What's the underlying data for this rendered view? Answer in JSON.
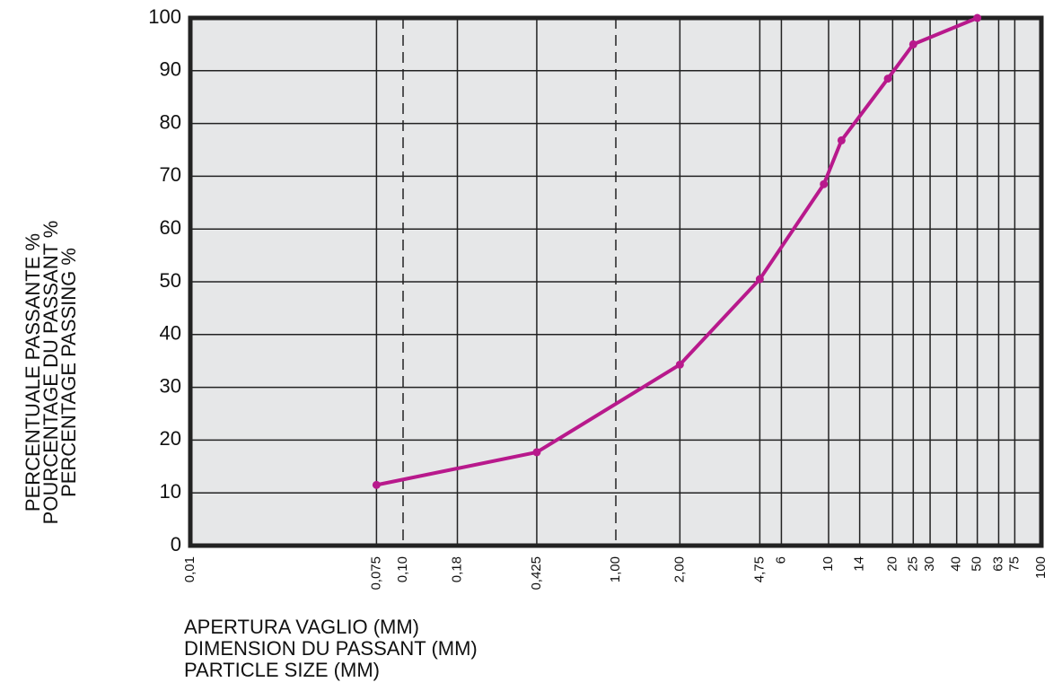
{
  "chart_data": {
    "type": "line",
    "xlabel": [
      "APERTURA VAGLIO (MM)",
      "DIMENSION DU PASSANT (MM)",
      "PARTICLE SIZE (MM)"
    ],
    "ylabel": [
      "PERCENTUALE PASSANTE %",
      "POURCENTAGE DU PASSANT %",
      "PERCENTAGE PASSING %"
    ],
    "xscale": "log",
    "xlim": [
      0.01,
      100
    ],
    "ylim": [
      0,
      100
    ],
    "xticks": [
      {
        "value": 0.01,
        "label": "0,01"
      },
      {
        "value": 0.075,
        "label": "0,075"
      },
      {
        "value": 0.1,
        "label": "0,10",
        "dashed": true
      },
      {
        "value": 0.18,
        "label": "0,18"
      },
      {
        "value": 0.425,
        "label": "0,425"
      },
      {
        "value": 1,
        "label": "1,00",
        "dashed": true
      },
      {
        "value": 2,
        "label": "2,00"
      },
      {
        "value": 4.75,
        "label": "4,75"
      },
      6,
      10,
      14,
      20,
      25,
      30,
      40,
      50,
      63,
      75,
      100
    ],
    "yticks": [
      0,
      10,
      20,
      30,
      40,
      50,
      60,
      70,
      80,
      90,
      100
    ],
    "grid": true,
    "series": [
      {
        "color": "#b8198c",
        "x": [
          0.075,
          0.425,
          2,
          4.75,
          9.5,
          11.5,
          19,
          25,
          50
        ],
        "values": [
          11.5,
          17.7,
          34.3,
          50.5,
          68.5,
          76.8,
          88.5,
          95,
          100
        ]
      }
    ]
  }
}
